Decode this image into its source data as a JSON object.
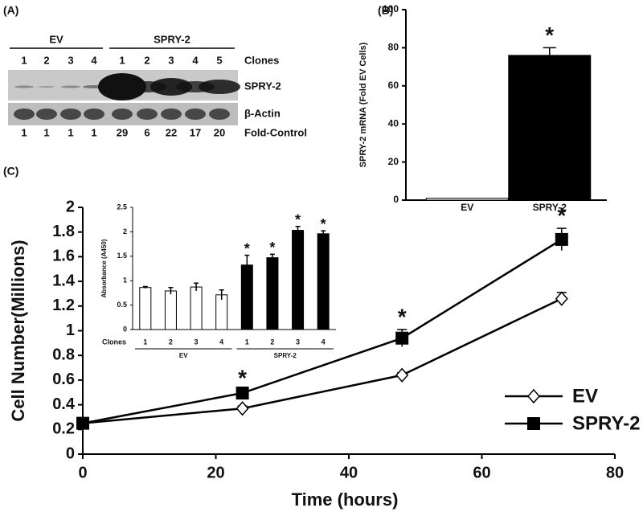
{
  "blot": {
    "label": "(A)",
    "groups": [
      {
        "name": "EV",
        "clones": [
          "1",
          "2",
          "3",
          "4"
        ],
        "fold": [
          1,
          1,
          1,
          1
        ]
      },
      {
        "name": "SPRY-2",
        "clones": [
          "1",
          "2",
          "3",
          "4",
          "5"
        ],
        "fold": [
          29,
          6,
          22,
          17,
          20
        ]
      }
    ],
    "row_labels": [
      "Clones",
      "SPRY-2",
      "β-Actin",
      "Fold-Control"
    ]
  },
  "chart_data": [
    {
      "type": "bar",
      "label": "(B)",
      "ylabel": "SPRY-2 mRNA (Fold EV Cells)",
      "categories": [
        "EV",
        "SPRY-2"
      ],
      "values": [
        1,
        76
      ],
      "errors": [
        null,
        4
      ],
      "colors": [
        "#ffffff",
        "#000000"
      ],
      "ylim": [
        0,
        100
      ],
      "yticks": [
        0,
        20,
        40,
        60,
        80,
        100
      ],
      "annotations": [
        {
          "text": "*",
          "category": "SPRY-2"
        }
      ]
    },
    {
      "type": "line",
      "label": "(C)",
      "xlabel": "Time (hours)",
      "ylabel": "Cell Number(Millions)",
      "x": [
        0,
        24,
        48,
        72
      ],
      "series": [
        {
          "name": "EV",
          "color": "#000000",
          "marker": "diamond",
          "values": [
            0.25,
            0.37,
            0.64,
            1.26
          ],
          "errors": [
            0,
            0.02,
            0.02,
            0.05
          ]
        },
        {
          "name": "SPRY-2",
          "color": "#000000",
          "marker": "square",
          "values": [
            0.25,
            0.495,
            0.94,
            1.74
          ],
          "errors": [
            0,
            0.02,
            0.07,
            0.09
          ]
        }
      ],
      "xlim": [
        0,
        80
      ],
      "xticks": [
        0,
        20,
        40,
        60,
        80
      ],
      "ylim": [
        0,
        2
      ],
      "yticks": [
        0,
        0.2,
        0.4,
        0.6,
        0.8,
        1,
        1.2,
        1.4,
        1.6,
        1.8,
        2
      ],
      "legend": "lower right",
      "annotations": [
        {
          "text": "*",
          "x": 24
        },
        {
          "text": "*",
          "x": 48
        },
        {
          "text": "*",
          "x": 72
        }
      ]
    },
    {
      "type": "bar",
      "ylabel": "Absorbance (A450)",
      "xlabel": "Clones",
      "categories": [
        "1",
        "2",
        "3",
        "4"
      ],
      "series": [
        {
          "name": "EV",
          "color": "#ffffff",
          "values": [
            0.86,
            0.79,
            0.87,
            0.71
          ],
          "errors": [
            0.02,
            0.07,
            0.08,
            0.1
          ]
        },
        {
          "name": "SPRY-2",
          "color": "#000000",
          "values": [
            1.32,
            1.47,
            2.03,
            1.96
          ],
          "errors": [
            0.2,
            0.07,
            0.08,
            0.06
          ],
          "annotation": "*"
        }
      ],
      "ylim": [
        0,
        2.5
      ],
      "yticks": [
        0,
        0.5,
        1,
        1.5,
        2,
        2.5
      ]
    }
  ]
}
